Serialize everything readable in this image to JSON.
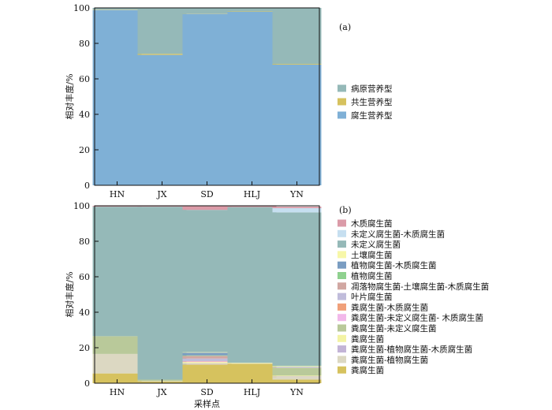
{
  "chart_data": [
    {
      "type": "bar",
      "stacked": true,
      "panel_label": "(a)",
      "title": "",
      "xlabel": "",
      "ylabel": "相对丰度/%",
      "ylim": [
        0,
        100
      ],
      "yticks": [
        0,
        20,
        40,
        60,
        80,
        100
      ],
      "categories": [
        "HN",
        "JX",
        "SD",
        "HLJ",
        "YN"
      ],
      "legend_position": "right",
      "series": [
        {
          "name": "腐生营养型",
          "color": "#7fb0d6",
          "values": [
            98.8,
            73.5,
            96.5,
            97.8,
            68.0
          ]
        },
        {
          "name": "共生营养型",
          "color": "#d6c25e",
          "values": [
            0.2,
            0.6,
            0.1,
            0.2,
            0.4
          ]
        },
        {
          "name": "病原营养型",
          "color": "#95b9b8",
          "values": [
            1.0,
            25.9,
            3.4,
            2.0,
            31.6
          ]
        }
      ]
    },
    {
      "type": "bar",
      "stacked": true,
      "panel_label": "(b)",
      "title": "",
      "xlabel": "采样点",
      "ylabel": "相对丰度/%",
      "ylim": [
        0,
        100
      ],
      "yticks": [
        0,
        20,
        40,
        60,
        80,
        100
      ],
      "categories": [
        "HN",
        "JX",
        "SD",
        "HLJ",
        "YN"
      ],
      "legend_position": "right",
      "series": [
        {
          "name": "粪腐生菌",
          "color": "#d6c25e",
          "values": [
            5.5,
            1.0,
            10.5,
            11.0,
            2.0
          ]
        },
        {
          "name": "粪腐生菌-植物腐生菌",
          "color": "#dcd8c2",
          "values": [
            11.0,
            0.2,
            0.3,
            0.2,
            1.5
          ]
        },
        {
          "name": "粪腐生菌-植物腐生菌-木质腐生菌",
          "color": "#c3b4d6",
          "values": [
            0.0,
            0.0,
            0.3,
            0.0,
            0.3
          ]
        },
        {
          "name": "粪腐生菌",
          "color": "#f3f3a4",
          "values": [
            0.0,
            0.0,
            0.8,
            0.3,
            0.5
          ]
        },
        {
          "name": "粪腐生菌-未定义腐生菌",
          "color": "#b9c99a",
          "values": [
            10.0,
            0.8,
            0.0,
            0.0,
            4.5
          ]
        },
        {
          "name": "粪腐生菌-未定义腐生菌- 木质腐生菌",
          "color": "#f2b8ea",
          "values": [
            0.0,
            0.0,
            0.3,
            0.0,
            0.2
          ]
        },
        {
          "name": "粪腐生菌-木质腐生菌",
          "color": "#f0a07a",
          "values": [
            0.0,
            0.0,
            0.2,
            0.0,
            0.0
          ]
        },
        {
          "name": "叶片腐生菌",
          "color": "#c0bcdb",
          "values": [
            0.0,
            0.0,
            1.5,
            0.0,
            0.3
          ]
        },
        {
          "name": "凋落物腐生菌-土壤腐生菌-木质腐生菌",
          "color": "#d1a7a2",
          "values": [
            0.0,
            0.0,
            1.5,
            0.0,
            0.0
          ]
        },
        {
          "name": "植物腐生菌",
          "color": "#8fd18f",
          "values": [
            0.0,
            0.0,
            0.3,
            0.0,
            0.2
          ]
        },
        {
          "name": "植物腐生菌-木质腐生菌",
          "color": "#7a9dc2",
          "values": [
            0.0,
            0.0,
            1.5,
            0.0,
            0.0
          ]
        },
        {
          "name": "土壤腐生菌",
          "color": "#f7f7a8",
          "values": [
            0.0,
            0.0,
            0.3,
            0.0,
            0.3
          ]
        },
        {
          "name": "未定义腐生菌",
          "color": "#95b9b8",
          "values": [
            73.0,
            97.5,
            80.2,
            87.8,
            86.5
          ]
        },
        {
          "name": "未定义腐生菌-木质腐生菌",
          "color": "#c6dff0",
          "values": [
            0.0,
            0.0,
            0.0,
            0.0,
            2.4
          ]
        },
        {
          "name": "木质腐生菌",
          "color": "#db9ba8",
          "values": [
            0.5,
            0.5,
            2.3,
            0.7,
            0.8
          ]
        }
      ]
    }
  ]
}
